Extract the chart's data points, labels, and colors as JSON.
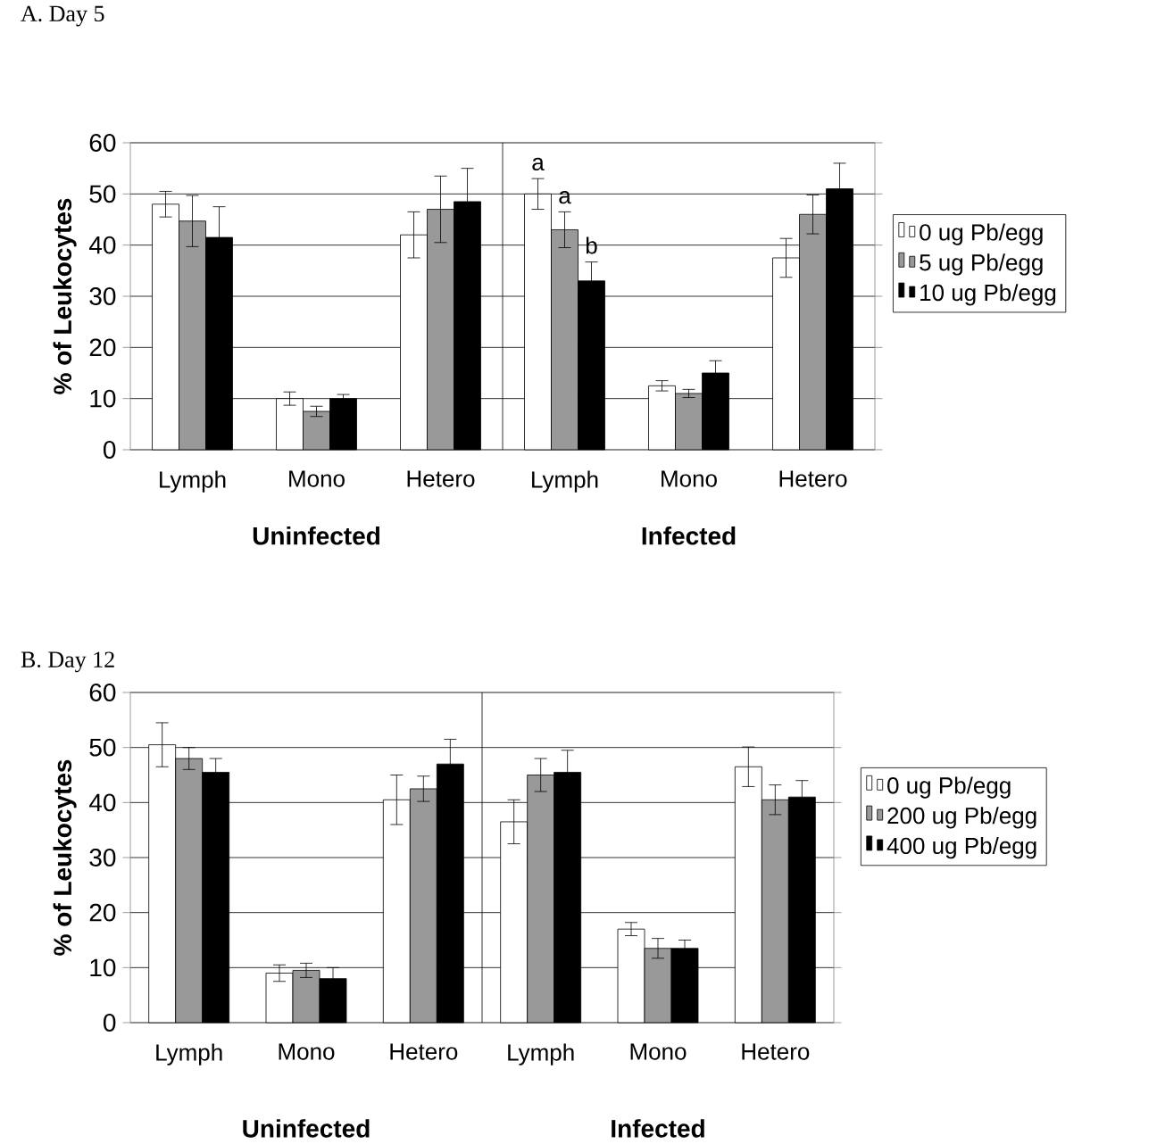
{
  "chart_data": [
    {
      "type": "bar",
      "title": "A.  Day 5",
      "ylabel": "% of Leukocytes",
      "categories": [
        "Lymph",
        "Mono",
        "Hetero",
        "Lymph",
        "Mono",
        "Hetero"
      ],
      "series": [
        {
          "name": "0 ug Pb/egg",
          "color": "#ffffff",
          "values": [
            48,
            10,
            42,
            50,
            12.5,
            37.5
          ],
          "errors": [
            2.5,
            1.3,
            4.5,
            3,
            1,
            3.8
          ]
        },
        {
          "name": "5 ug Pb/egg",
          "color": "#999999",
          "values": [
            44.7,
            7.5,
            47,
            43,
            11,
            46
          ],
          "errors": [
            5,
            1,
            6.5,
            3.5,
            0.8,
            3.8
          ]
        },
        {
          "name": "10 ug Pb/egg",
          "color": "#000000",
          "values": [
            41.5,
            10,
            48.5,
            33,
            15,
            51
          ],
          "errors": [
            6,
            0.8,
            6.5,
            3.7,
            2.4,
            5
          ]
        }
      ],
      "annotations": [
        "Uninfected",
        "Infected",
        "a",
        "a",
        "b"
      ],
      "ylim": [
        0,
        60
      ],
      "yticks": [
        0,
        10,
        20,
        30,
        40,
        50,
        60
      ],
      "grid": "y",
      "legend": "right"
    },
    {
      "type": "bar",
      "title": "B.  Day 12",
      "ylabel": "% of Leukocytes",
      "categories": [
        "Lymph",
        "Mono",
        "Hetero",
        "Lymph",
        "Mono",
        "Hetero"
      ],
      "series": [
        {
          "name": "0 ug Pb/egg",
          "color": "#ffffff",
          "values": [
            50.5,
            9,
            40.5,
            36.5,
            17,
            46.5
          ],
          "errors": [
            4,
            1.5,
            4.5,
            4,
            1.2,
            3.6
          ]
        },
        {
          "name": "200 ug Pb/egg",
          "color": "#999999",
          "values": [
            48,
            9.5,
            42.5,
            45,
            13.5,
            40.5
          ],
          "errors": [
            2,
            1.3,
            2.3,
            3,
            1.8,
            2.7
          ]
        },
        {
          "name": "400 ug Pb/egg",
          "color": "#000000",
          "values": [
            45.5,
            8,
            47,
            45.5,
            13.5,
            41
          ],
          "errors": [
            2.5,
            2,
            4.5,
            4,
            1.5,
            3
          ]
        }
      ],
      "annotations": [
        "Uninfected",
        "Infected"
      ],
      "ylim": [
        0,
        60
      ],
      "yticks": [
        0,
        10,
        20,
        30,
        40,
        50,
        60
      ],
      "grid": "y",
      "legend": "right"
    }
  ]
}
